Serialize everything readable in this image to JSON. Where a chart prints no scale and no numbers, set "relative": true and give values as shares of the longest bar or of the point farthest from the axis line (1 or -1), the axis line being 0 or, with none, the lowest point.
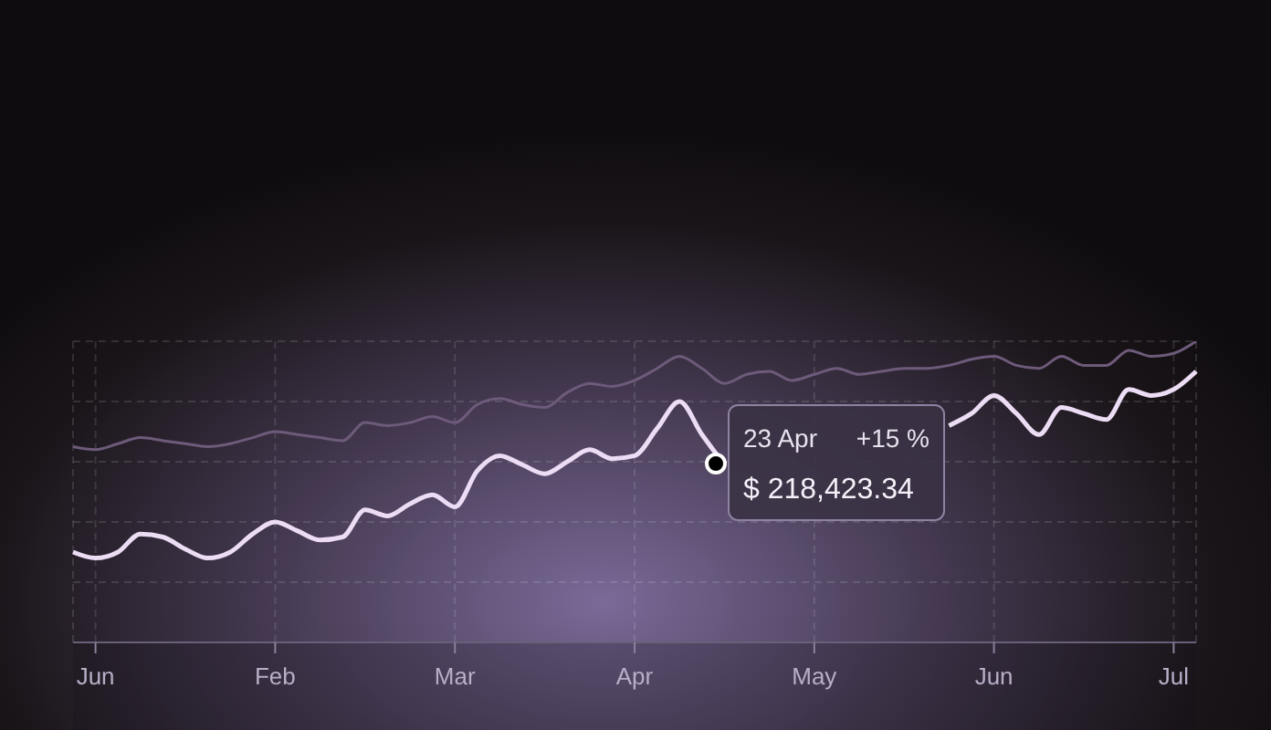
{
  "chart_data": {
    "type": "line",
    "relative": true,
    "categories": [
      null,
      "Jun",
      null,
      null,
      null,
      null,
      null,
      null,
      null,
      "Feb",
      null,
      null,
      null,
      null,
      null,
      null,
      null,
      "Mar",
      null,
      null,
      null,
      null,
      null,
      null,
      null,
      "Apr",
      null,
      null,
      null,
      null,
      null,
      null,
      null,
      "May",
      null,
      null,
      null,
      null,
      null,
      null,
      null,
      "Jun",
      null,
      null,
      null,
      null,
      null,
      null,
      null,
      "Jul",
      null
    ],
    "grid": true,
    "marker": "none",
    "line_style": "solid",
    "series": [
      {
        "color": "#6e5a7a",
        "values": [
          0.65,
          0.64,
          0.66,
          0.68,
          0.67,
          0.66,
          0.65,
          0.66,
          0.68,
          0.7,
          0.69,
          0.68,
          0.67,
          0.73,
          0.72,
          0.73,
          0.75,
          0.73,
          0.79,
          0.81,
          0.79,
          0.78,
          0.83,
          0.86,
          0.85,
          0.87,
          0.91,
          0.95,
          0.91,
          0.86,
          0.89,
          0.9,
          0.87,
          0.89,
          0.91,
          0.89,
          0.9,
          0.91,
          0.91,
          0.92,
          0.94,
          0.95,
          0.92,
          0.91,
          0.95,
          0.92,
          0.92,
          0.97,
          0.95,
          0.96,
          1
        ]
      },
      {
        "color": "#ecdcf4",
        "values": [
          0.3,
          0.28,
          0.3,
          0.36,
          0.35,
          0.31,
          0.28,
          0.3,
          0.36,
          0.4,
          0.37,
          0.34,
          0.35,
          0.44,
          0.42,
          0.46,
          0.49,
          0.45,
          0.57,
          0.62,
          0.59,
          0.56,
          0.6,
          0.64,
          0.61,
          0.62,
          0.71,
          0.8,
          0.69,
          0.59,
          null,
          null,
          null,
          null,
          null,
          null,
          null,
          null,
          null,
          0.72,
          0.76,
          0.82,
          0.76,
          0.69,
          0.78,
          0.76,
          0.74,
          0.84,
          0.82,
          0.84,
          0.9
        ]
      }
    ],
    "annotations": [
      "23 Apr",
      "+15 %",
      "$ 218,423.34"
    ]
  }
}
